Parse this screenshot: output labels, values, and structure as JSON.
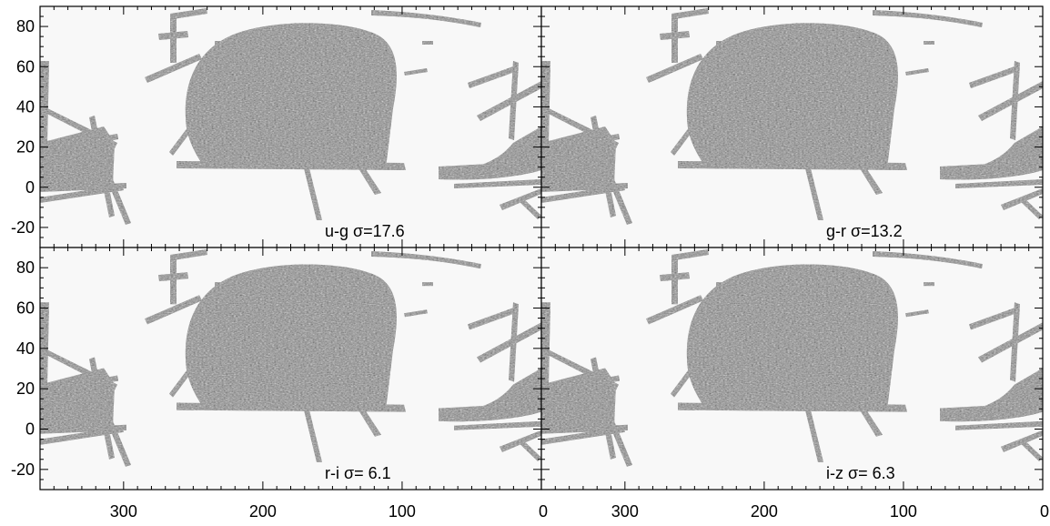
{
  "chart_data": [
    {
      "type": "heatmap",
      "label": "u-g σ=17.6",
      "xlim": [
        360,
        0
      ],
      "ylim": [
        -30,
        90
      ],
      "xticks": [
        "300",
        "200",
        "100",
        "0"
      ],
      "yticks": [
        "80",
        "60",
        "40",
        "20",
        "0",
        "-20"
      ],
      "grid": false
    },
    {
      "type": "heatmap",
      "label": "g-r σ=13.2",
      "xlim": [
        360,
        0
      ],
      "ylim": [
        -30,
        90
      ],
      "xticks": [
        "300",
        "200",
        "100",
        "0"
      ],
      "yticks": [],
      "grid": false
    },
    {
      "type": "heatmap",
      "label": "r-i σ= 6.1",
      "xlim": [
        360,
        0
      ],
      "ylim": [
        -30,
        90
      ],
      "xticks": [
        "300",
        "200",
        "100",
        "0"
      ],
      "yticks": [
        "80",
        "60",
        "40",
        "20",
        "0",
        "-20"
      ],
      "grid": false
    },
    {
      "type": "heatmap",
      "label": "i-z σ= 6.3",
      "xlim": [
        360,
        0
      ],
      "ylim": [
        -30,
        90
      ],
      "xticks": [
        "300",
        "200",
        "100",
        "0"
      ],
      "yticks": [],
      "grid": false
    }
  ],
  "colors": {
    "background": "#f8f8f8",
    "map": "#8c8c8c",
    "frame": "#000000"
  }
}
